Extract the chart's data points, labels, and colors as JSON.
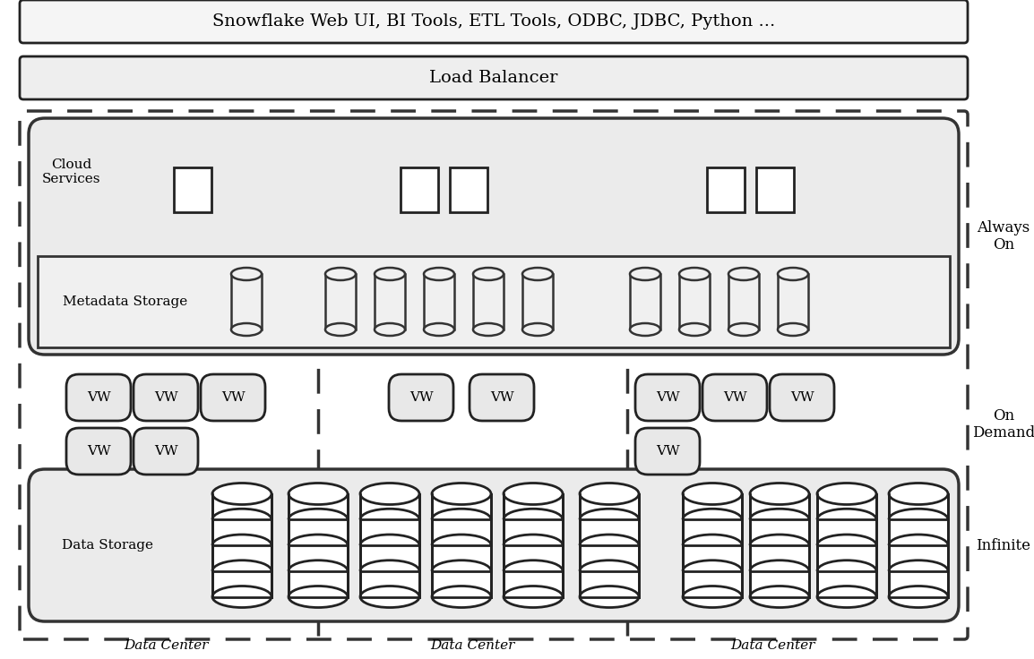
{
  "fig_width": 11.54,
  "fig_height": 7.36,
  "bg_color": "#ffffff",
  "light_gray": "#f0f0f0",
  "medium_gray": "#e8e8e8",
  "dark_border": "#222222",
  "title_text": "Snowflake Web UI, BI Tools, ETL Tools, ODBC, JDBC, Python ...",
  "load_balancer_text": "Load Balancer",
  "cloud_services_text": "Cloud\nServices",
  "metadata_storage_text": "Metadata Storage",
  "data_storage_text": "Data Storage",
  "vw_text": "VW",
  "data_center_text": "Data Center",
  "always_on_text": "Always\nOn",
  "on_demand_text": "On\nDemand",
  "infinite_text": "Infinite"
}
